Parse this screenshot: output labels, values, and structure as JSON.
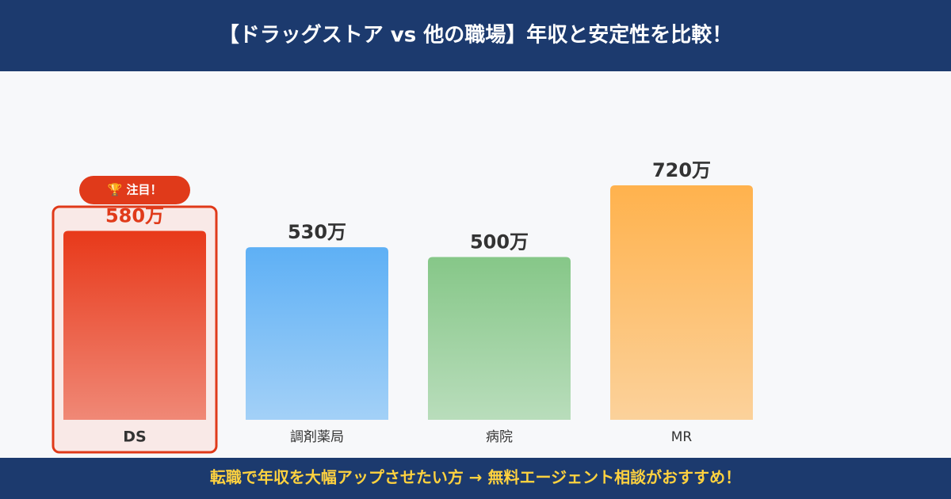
{
  "chart_data": {
    "type": "bar",
    "title": "【ドラッグストア vs 他の職場】年収と安定性を比較！",
    "categories": [
      "DS",
      "調剤薬局",
      "病院",
      "MR"
    ],
    "values": [
      580,
      530,
      500,
      720
    ],
    "value_labels": [
      "580万",
      "530万",
      "500万",
      "720万"
    ],
    "colors": [
      "#e8391a",
      "#5eb0f5",
      "#86c788",
      "#ffb24d"
    ],
    "highlight": "DS",
    "badge": "🏆 注目！",
    "footer": "転職で年収を大幅アップさせたい方 → 無料エージェント相談がおすすめ！"
  }
}
